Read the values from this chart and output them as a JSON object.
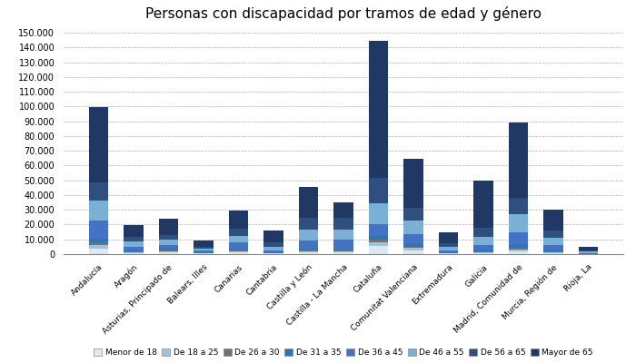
{
  "title": "Personas con discapacidad por tramos de edad y género",
  "categories": [
    "Andalucía",
    "Aragón",
    "Asturias, Principado de",
    "Balears, Illes",
    "Canarias",
    "Cantabria",
    "Castilla y León",
    "Castilla - La Mancha",
    "Cataluña",
    "Comunitat Valenciana",
    "Extremadura",
    "Galicia",
    "Madrid, Comunidad de",
    "Murcia, Región de",
    "Rioja, La"
  ],
  "age_groups": [
    "Menor de 18",
    "De 18 a 25",
    "De 26 a 30",
    "De 31 a 35",
    "De 36 a 45",
    "De 46 a 55",
    "De 56 a 65",
    "Mayor de 65"
  ],
  "colors": [
    "#dce9f5",
    "#9dc3e0",
    "#757070",
    "#2e75b6",
    "#4472c4",
    "#7ab0d4",
    "#2f4f7f",
    "#1f3864"
  ],
  "data": {
    "Menor de 18": [
      3500,
      800,
      1200,
      400,
      1200,
      400,
      1200,
      1200,
      5500,
      2500,
      400,
      800,
      1800,
      800,
      150
    ],
    "De 18 a 25": [
      2500,
      700,
      800,
      300,
      900,
      300,
      900,
      900,
      2500,
      1500,
      300,
      700,
      1500,
      700,
      100
    ],
    "De 26 a 30": [
      2000,
      600,
      700,
      200,
      800,
      200,
      800,
      800,
      2000,
      1200,
      200,
      600,
      1200,
      600,
      100
    ],
    "De 31 a 35": [
      2500,
      600,
      700,
      200,
      900,
      300,
      900,
      900,
      2500,
      1400,
      200,
      700,
      1500,
      700,
      100
    ],
    "De 36 a 45": [
      12000,
      2500,
      2800,
      1200,
      4000,
      1500,
      5500,
      6000,
      8000,
      7000,
      1500,
      3500,
      9000,
      3500,
      400
    ],
    "De 46 a 55": [
      14000,
      3500,
      3500,
      1300,
      4500,
      2500,
      7000,
      7000,
      14000,
      9000,
      2500,
      5500,
      12000,
      4500,
      800
    ],
    "De 56 a 65": [
      12000,
      3000,
      3500,
      1300,
      5000,
      3000,
      8000,
      7500,
      17000,
      9000,
      2500,
      6000,
      11000,
      5000,
      900
    ],
    "Mayor de 65": [
      51000,
      8000,
      11000,
      4500,
      12500,
      7500,
      21000,
      11000,
      93000,
      33000,
      7000,
      32000,
      51000,
      14500,
      2500
    ]
  },
  "ylim": [
    0,
    155000
  ],
  "yticks": [
    0,
    10000,
    20000,
    30000,
    40000,
    50000,
    60000,
    70000,
    80000,
    90000,
    100000,
    110000,
    120000,
    130000,
    140000,
    150000
  ],
  "ytick_labels": [
    "0",
    "10.000",
    "20.000",
    "30.000",
    "40.000",
    "50.000",
    "60.000",
    "70.000",
    "80.000",
    "90.000",
    "100.000",
    "110.000",
    "120.000",
    "130.000",
    "140.000",
    "150.000"
  ],
  "background_color": "#ffffff",
  "grid_color": "#b0b0b0",
  "bar_width": 0.55,
  "title_fontsize": 11
}
